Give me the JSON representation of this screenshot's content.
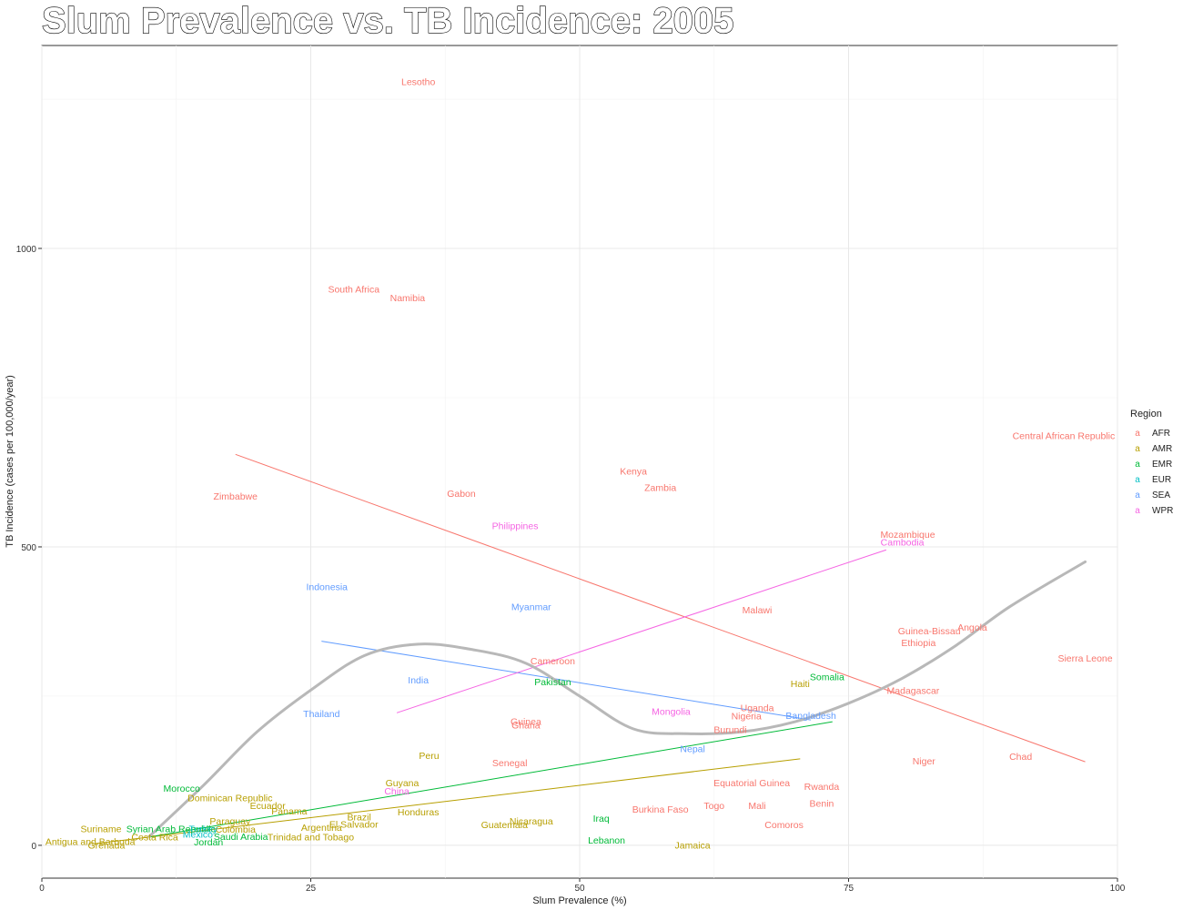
{
  "chart_data": {
    "type": "scatter",
    "title": "Slum Prevalence vs. TB Incidence: 2005",
    "xlabel": "Slum Prevalence (%)",
    "ylabel": "TB Incidence (cases per 100,000/year)",
    "xlim": [
      0,
      100
    ],
    "ylim": [
      -55,
      1340
    ],
    "x_ticks": [
      0,
      25,
      50,
      75,
      100
    ],
    "y_ticks": [
      0,
      500,
      1000
    ],
    "legend": {
      "title": "Region",
      "position": "right",
      "entries": [
        {
          "key": "a",
          "name": "AFR",
          "color": "#F8766D"
        },
        {
          "key": "a",
          "name": "AMR",
          "color": "#B79F00"
        },
        {
          "key": "a",
          "name": "EMR",
          "color": "#00BA38"
        },
        {
          "key": "a",
          "name": "EUR",
          "color": "#00BFC4"
        },
        {
          "key": "a",
          "name": "SEA",
          "color": "#619CFF"
        },
        {
          "key": "a",
          "name": "WPR",
          "color": "#F564E3"
        }
      ]
    },
    "points": [
      {
        "label": "Lesotho",
        "region": "AFR",
        "x": 35,
        "y": 1280
      },
      {
        "label": "South Africa",
        "region": "AFR",
        "x": 29,
        "y": 932
      },
      {
        "label": "Namibia",
        "region": "AFR",
        "x": 34,
        "y": 918
      },
      {
        "label": "Central African Republic",
        "region": "AFR",
        "x": 95,
        "y": 687
      },
      {
        "label": "Kenya",
        "region": "AFR",
        "x": 55,
        "y": 627
      },
      {
        "label": "Zambia",
        "region": "AFR",
        "x": 57.5,
        "y": 600
      },
      {
        "label": "Zimbabwe",
        "region": "AFR",
        "x": 18,
        "y": 585
      },
      {
        "label": "Gabon",
        "region": "AFR",
        "x": 39,
        "y": 590
      },
      {
        "label": "Mozambique",
        "region": "AFR",
        "x": 80.5,
        "y": 521
      },
      {
        "label": "Malawi",
        "region": "AFR",
        "x": 66.5,
        "y": 395
      },
      {
        "label": "Angola",
        "region": "AFR",
        "x": 86.5,
        "y": 366
      },
      {
        "label": "Guinea-Bissau",
        "region": "AFR",
        "x": 82.5,
        "y": 360
      },
      {
        "label": "Ethiopia",
        "region": "AFR",
        "x": 81.5,
        "y": 340
      },
      {
        "label": "Sierra Leone",
        "region": "AFR",
        "x": 97,
        "y": 314
      },
      {
        "label": "Cameroon",
        "region": "AFR",
        "x": 47.5,
        "y": 309
      },
      {
        "label": "Madagascar",
        "region": "AFR",
        "x": 81,
        "y": 260
      },
      {
        "label": "Uganda",
        "region": "AFR",
        "x": 66.5,
        "y": 231
      },
      {
        "label": "Nigeria",
        "region": "AFR",
        "x": 65.5,
        "y": 217
      },
      {
        "label": "Guinea",
        "region": "AFR",
        "x": 45,
        "y": 208
      },
      {
        "label": "Ghana",
        "region": "AFR",
        "x": 45,
        "y": 202
      },
      {
        "label": "Burundi",
        "region": "AFR",
        "x": 64,
        "y": 194
      },
      {
        "label": "Chad",
        "region": "AFR",
        "x": 91,
        "y": 149
      },
      {
        "label": "Niger",
        "region": "AFR",
        "x": 82,
        "y": 142
      },
      {
        "label": "Senegal",
        "region": "AFR",
        "x": 43.5,
        "y": 139
      },
      {
        "label": "Equatorial Guinea",
        "region": "AFR",
        "x": 66,
        "y": 105
      },
      {
        "label": "Rwanda",
        "region": "AFR",
        "x": 72.5,
        "y": 99
      },
      {
        "label": "Benin",
        "region": "AFR",
        "x": 72.5,
        "y": 71
      },
      {
        "label": "Togo",
        "region": "AFR",
        "x": 62.5,
        "y": 67
      },
      {
        "label": "Mali",
        "region": "AFR",
        "x": 66.5,
        "y": 67
      },
      {
        "label": "Burkina Faso",
        "region": "AFR",
        "x": 57.5,
        "y": 61
      },
      {
        "label": "Comoros",
        "region": "AFR",
        "x": 69,
        "y": 35
      },
      {
        "label": "Haiti",
        "region": "AMR",
        "x": 70.5,
        "y": 271
      },
      {
        "label": "Peru",
        "region": "AMR",
        "x": 36,
        "y": 151
      },
      {
        "label": "Guyana",
        "region": "AMR",
        "x": 33.5,
        "y": 105
      },
      {
        "label": "Dominican Republic",
        "region": "AMR",
        "x": 17.5,
        "y": 80
      },
      {
        "label": "Ecuador",
        "region": "AMR",
        "x": 21,
        "y": 67
      },
      {
        "label": "Panama",
        "region": "AMR",
        "x": 23,
        "y": 58
      },
      {
        "label": "Honduras",
        "region": "AMR",
        "x": 35,
        "y": 56
      },
      {
        "label": "Brazil",
        "region": "AMR",
        "x": 29.5,
        "y": 48
      },
      {
        "label": "Paraguay",
        "region": "AMR",
        "x": 17.5,
        "y": 41
      },
      {
        "label": "Nicaragua",
        "region": "AMR",
        "x": 45.5,
        "y": 41
      },
      {
        "label": "El Salvador",
        "region": "AMR",
        "x": 29,
        "y": 36
      },
      {
        "label": "Guatemala",
        "region": "AMR",
        "x": 43,
        "y": 35
      },
      {
        "label": "Argentina",
        "region": "AMR",
        "x": 26,
        "y": 30
      },
      {
        "label": "Suriname",
        "region": "AMR",
        "x": 5.5,
        "y": 28
      },
      {
        "label": "Colombia",
        "region": "AMR",
        "x": 18,
        "y": 27
      },
      {
        "label": "Costa Rica",
        "region": "AMR",
        "x": 10.5,
        "y": 14
      },
      {
        "label": "Trinidad and Tobago",
        "region": "AMR",
        "x": 25,
        "y": 14
      },
      {
        "label": "Antigua and Barbuda",
        "region": "AMR",
        "x": 4.5,
        "y": 7
      },
      {
        "label": "Grenada",
        "region": "AMR",
        "x": 6,
        "y": 1
      },
      {
        "label": "Jamaica",
        "region": "AMR",
        "x": 60.5,
        "y": 1
      },
      {
        "label": "Somalia",
        "region": "EMR",
        "x": 73,
        "y": 283
      },
      {
        "label": "Pakistan",
        "region": "EMR",
        "x": 47.5,
        "y": 274
      },
      {
        "label": "Morocco",
        "region": "EMR",
        "x": 13,
        "y": 96
      },
      {
        "label": "Iraq",
        "region": "EMR",
        "x": 52,
        "y": 46
      },
      {
        "label": "Syrian Arab Republic",
        "region": "EMR",
        "x": 12,
        "y": 28
      },
      {
        "label": "Saudi Arabia",
        "region": "EMR",
        "x": 18.5,
        "y": 15
      },
      {
        "label": "Lebanon",
        "region": "EMR",
        "x": 52.5,
        "y": 9
      },
      {
        "label": "Jordan",
        "region": "EMR",
        "x": 15.5,
        "y": 6
      },
      {
        "label": "Turkey",
        "region": "EUR",
        "x": 15,
        "y": 28
      },
      {
        "label": "Mexico",
        "region": "EUR",
        "x": 14.5,
        "y": 19
      },
      {
        "label": "Indonesia",
        "region": "SEA",
        "x": 26.5,
        "y": 434
      },
      {
        "label": "Myanmar",
        "region": "SEA",
        "x": 45.5,
        "y": 400
      },
      {
        "label": "India",
        "region": "SEA",
        "x": 35,
        "y": 277
      },
      {
        "label": "Thailand",
        "region": "SEA",
        "x": 26,
        "y": 221
      },
      {
        "label": "Bangladesh",
        "region": "SEA",
        "x": 71.5,
        "y": 218
      },
      {
        "label": "Nepal",
        "region": "SEA",
        "x": 60.5,
        "y": 162
      },
      {
        "label": "Philippines",
        "region": "WPR",
        "x": 44,
        "y": 536
      },
      {
        "label": "Cambodia",
        "region": "WPR",
        "x": 80,
        "y": 508
      },
      {
        "label": "Mongolia",
        "region": "WPR",
        "x": 58.5,
        "y": 225
      },
      {
        "label": "China",
        "region": "WPR",
        "x": 33,
        "y": 91
      }
    ],
    "trend_lines": [
      {
        "region": "AFR",
        "x": [
          18,
          97
        ],
        "y": [
          655,
          140
        ]
      },
      {
        "region": "AMR",
        "x": [
          5,
          70.5
        ],
        "y": [
          3,
          145
        ]
      },
      {
        "region": "EMR",
        "x": [
          10,
          73.5
        ],
        "y": [
          14,
          207
        ]
      },
      {
        "region": "SEA",
        "x": [
          26,
          71.5
        ],
        "y": [
          342,
          210
        ]
      },
      {
        "region": "WPR",
        "x": [
          33,
          78.5
        ],
        "y": [
          222,
          495
        ]
      }
    ],
    "smooth_curve": {
      "color": "#b8b8b8",
      "x": [
        10,
        15,
        20,
        25,
        30,
        35,
        40,
        45,
        50,
        55,
        60,
        65,
        70,
        75,
        80,
        85,
        90,
        97
      ],
      "y": [
        15,
        100,
        190,
        260,
        318,
        337,
        328,
        305,
        250,
        195,
        187,
        190,
        207,
        238,
        280,
        335,
        400,
        475
      ]
    }
  }
}
